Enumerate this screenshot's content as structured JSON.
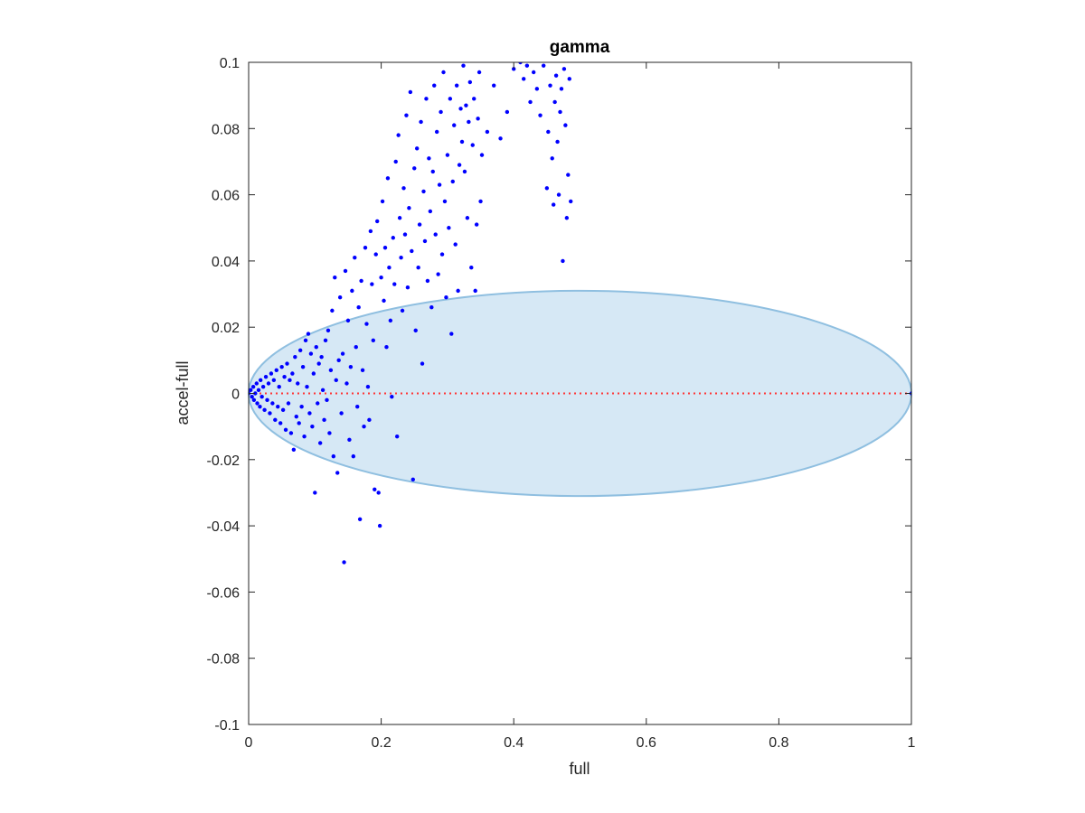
{
  "chart_data": {
    "type": "scatter",
    "title": "gamma",
    "xlabel": "full",
    "ylabel": "accel-full",
    "xlim": [
      0,
      1
    ],
    "ylim": [
      -0.1,
      0.1
    ],
    "x_ticks": [
      0,
      0.2,
      0.4,
      0.6,
      0.8,
      1
    ],
    "x_tick_labels": [
      "0",
      "0.2",
      "0.4",
      "0.6",
      "0.8",
      "1"
    ],
    "y_ticks": [
      -0.1,
      -0.08,
      -0.06,
      -0.04,
      -0.02,
      0,
      0.02,
      0.04,
      0.06,
      0.08,
      0.1
    ],
    "y_tick_labels": [
      "-0.1",
      "-0.08",
      "-0.06",
      "-0.04",
      "-0.02",
      "0",
      "0.02",
      "0.04",
      "0.06",
      "0.08",
      "0.1"
    ],
    "grid": false,
    "colors": {
      "points": "#0000ff",
      "ellipse_fill": "#d6e8f5",
      "ellipse_edge": "#8fbfe0",
      "reference_line": "#ff3333",
      "axes": "#262626"
    },
    "ellipse": {
      "cx": 0.5,
      "cy": 0,
      "rx": 0.5,
      "ry": 0.031
    },
    "reference_line": {
      "y": 0,
      "x": [
        0,
        1
      ],
      "style": "dotted"
    },
    "points": [
      [
        0.0,
        0.0
      ],
      [
        0.003,
        0.001
      ],
      [
        0.005,
        -0.001
      ],
      [
        0.007,
        0.002
      ],
      [
        0.008,
        -0.002
      ],
      [
        0.01,
        0.0
      ],
      [
        0.012,
        0.003
      ],
      [
        0.013,
        -0.003
      ],
      [
        0.015,
        0.001
      ],
      [
        0.017,
        -0.004
      ],
      [
        0.018,
        0.004
      ],
      [
        0.02,
        -0.001
      ],
      [
        0.022,
        0.002
      ],
      [
        0.024,
        -0.005
      ],
      [
        0.026,
        0.005
      ],
      [
        0.028,
        -0.002
      ],
      [
        0.03,
        0.003
      ],
      [
        0.032,
        -0.006
      ],
      [
        0.034,
        0.006
      ],
      [
        0.036,
        -0.003
      ],
      [
        0.038,
        0.004
      ],
      [
        0.04,
        -0.008
      ],
      [
        0.042,
        0.007
      ],
      [
        0.044,
        -0.004
      ],
      [
        0.046,
        0.002
      ],
      [
        0.048,
        -0.009
      ],
      [
        0.05,
        0.008
      ],
      [
        0.052,
        -0.005
      ],
      [
        0.054,
        0.005
      ],
      [
        0.056,
        -0.011
      ],
      [
        0.058,
        0.009
      ],
      [
        0.06,
        -0.003
      ],
      [
        0.062,
        0.004
      ],
      [
        0.064,
        -0.012
      ],
      [
        0.066,
        0.006
      ],
      [
        0.068,
        -0.017
      ],
      [
        0.07,
        0.011
      ],
      [
        0.072,
        -0.007
      ],
      [
        0.074,
        0.003
      ],
      [
        0.076,
        -0.009
      ],
      [
        0.078,
        0.013
      ],
      [
        0.08,
        -0.004
      ],
      [
        0.082,
        0.008
      ],
      [
        0.084,
        -0.013
      ],
      [
        0.086,
        0.016
      ],
      [
        0.088,
        0.002
      ],
      [
        0.09,
        0.018
      ],
      [
        0.092,
        -0.006
      ],
      [
        0.094,
        0.012
      ],
      [
        0.096,
        -0.01
      ],
      [
        0.098,
        0.006
      ],
      [
        0.1,
        -0.03
      ],
      [
        0.102,
        0.014
      ],
      [
        0.104,
        -0.003
      ],
      [
        0.106,
        0.009
      ],
      [
        0.108,
        -0.015
      ],
      [
        0.11,
        0.011
      ],
      [
        0.112,
        0.001
      ],
      [
        0.114,
        -0.008
      ],
      [
        0.116,
        0.016
      ],
      [
        0.118,
        -0.002
      ],
      [
        0.12,
        0.019
      ],
      [
        0.122,
        -0.012
      ],
      [
        0.124,
        0.007
      ],
      [
        0.126,
        0.025
      ],
      [
        0.128,
        -0.019
      ],
      [
        0.13,
        0.035
      ],
      [
        0.132,
        0.004
      ],
      [
        0.134,
        -0.024
      ],
      [
        0.136,
        0.01
      ],
      [
        0.138,
        0.029
      ],
      [
        0.14,
        -0.006
      ],
      [
        0.142,
        0.012
      ],
      [
        0.144,
        -0.051
      ],
      [
        0.146,
        0.037
      ],
      [
        0.148,
        0.003
      ],
      [
        0.15,
        0.022
      ],
      [
        0.152,
        -0.014
      ],
      [
        0.154,
        0.008
      ],
      [
        0.156,
        0.031
      ],
      [
        0.158,
        -0.019
      ],
      [
        0.16,
        0.041
      ],
      [
        0.162,
        0.014
      ],
      [
        0.164,
        -0.004
      ],
      [
        0.166,
        0.026
      ],
      [
        0.168,
        -0.038
      ],
      [
        0.17,
        0.034
      ],
      [
        0.172,
        0.007
      ],
      [
        0.174,
        -0.01
      ],
      [
        0.176,
        0.044
      ],
      [
        0.178,
        0.021
      ],
      [
        0.18,
        0.002
      ],
      [
        0.182,
        -0.008
      ],
      [
        0.184,
        0.049
      ],
      [
        0.186,
        0.033
      ],
      [
        0.188,
        0.016
      ],
      [
        0.19,
        -0.029
      ],
      [
        0.192,
        0.042
      ],
      [
        0.194,
        0.052
      ],
      [
        0.196,
        -0.03
      ],
      [
        0.198,
        -0.04
      ],
      [
        0.2,
        0.035
      ],
      [
        0.202,
        0.058
      ],
      [
        0.204,
        0.028
      ],
      [
        0.206,
        0.044
      ],
      [
        0.208,
        0.014
      ],
      [
        0.21,
        0.065
      ],
      [
        0.212,
        0.038
      ],
      [
        0.214,
        0.022
      ],
      [
        0.216,
        -0.001
      ],
      [
        0.218,
        0.047
      ],
      [
        0.22,
        0.033
      ],
      [
        0.222,
        0.07
      ],
      [
        0.224,
        -0.013
      ],
      [
        0.226,
        0.078
      ],
      [
        0.228,
        0.053
      ],
      [
        0.23,
        0.041
      ],
      [
        0.232,
        0.025
      ],
      [
        0.234,
        0.062
      ],
      [
        0.236,
        0.048
      ],
      [
        0.238,
        0.084
      ],
      [
        0.24,
        0.032
      ],
      [
        0.242,
        0.056
      ],
      [
        0.244,
        0.091
      ],
      [
        0.246,
        0.043
      ],
      [
        0.248,
        -0.026
      ],
      [
        0.25,
        0.068
      ],
      [
        0.252,
        0.019
      ],
      [
        0.254,
        0.074
      ],
      [
        0.256,
        0.038
      ],
      [
        0.258,
        0.051
      ],
      [
        0.26,
        0.082
      ],
      [
        0.262,
        0.009
      ],
      [
        0.264,
        0.061
      ],
      [
        0.266,
        0.046
      ],
      [
        0.268,
        0.089
      ],
      [
        0.27,
        0.034
      ],
      [
        0.272,
        0.071
      ],
      [
        0.274,
        0.055
      ],
      [
        0.276,
        0.026
      ],
      [
        0.278,
        0.067
      ],
      [
        0.28,
        0.093
      ],
      [
        0.282,
        0.048
      ],
      [
        0.284,
        0.079
      ],
      [
        0.286,
        0.036
      ],
      [
        0.288,
        0.063
      ],
      [
        0.29,
        0.085
      ],
      [
        0.292,
        0.042
      ],
      [
        0.294,
        0.097
      ],
      [
        0.296,
        0.058
      ],
      [
        0.298,
        0.029
      ],
      [
        0.3,
        0.072
      ],
      [
        0.302,
        0.05
      ],
      [
        0.304,
        0.089
      ],
      [
        0.306,
        0.018
      ],
      [
        0.308,
        0.064
      ],
      [
        0.31,
        0.081
      ],
      [
        0.312,
        0.045
      ],
      [
        0.314,
        0.093
      ],
      [
        0.316,
        0.031
      ],
      [
        0.318,
        0.069
      ],
      [
        0.32,
        0.086
      ],
      [
        0.322,
        0.076
      ],
      [
        0.324,
        0.099
      ],
      [
        0.326,
        0.067
      ],
      [
        0.328,
        0.087
      ],
      [
        0.33,
        0.053
      ],
      [
        0.332,
        0.082
      ],
      [
        0.334,
        0.094
      ],
      [
        0.336,
        0.038
      ],
      [
        0.338,
        0.075
      ],
      [
        0.34,
        0.089
      ],
      [
        0.342,
        0.031
      ],
      [
        0.344,
        0.051
      ],
      [
        0.346,
        0.083
      ],
      [
        0.348,
        0.097
      ],
      [
        0.35,
        0.058
      ],
      [
        0.352,
        0.072
      ],
      [
        0.36,
        0.079
      ],
      [
        0.37,
        0.093
      ],
      [
        0.38,
        0.077
      ],
      [
        0.39,
        0.085
      ],
      [
        0.4,
        0.098
      ],
      [
        0.41,
        0.1
      ],
      [
        0.415,
        0.095
      ],
      [
        0.42,
        0.099
      ],
      [
        0.425,
        0.088
      ],
      [
        0.43,
        0.097
      ],
      [
        0.435,
        0.092
      ],
      [
        0.44,
        0.084
      ],
      [
        0.445,
        0.099
      ],
      [
        0.45,
        0.062
      ],
      [
        0.452,
        0.079
      ],
      [
        0.455,
        0.093
      ],
      [
        0.458,
        0.071
      ],
      [
        0.46,
        0.057
      ],
      [
        0.462,
        0.088
      ],
      [
        0.464,
        0.096
      ],
      [
        0.466,
        0.076
      ],
      [
        0.468,
        0.06
      ],
      [
        0.47,
        0.085
      ],
      [
        0.472,
        0.092
      ],
      [
        0.474,
        0.04
      ],
      [
        0.476,
        0.098
      ],
      [
        0.478,
        0.081
      ],
      [
        0.48,
        0.053
      ],
      [
        0.482,
        0.066
      ],
      [
        0.484,
        0.095
      ],
      [
        0.486,
        0.058
      ],
      [
        1.0,
        0.0
      ]
    ]
  }
}
